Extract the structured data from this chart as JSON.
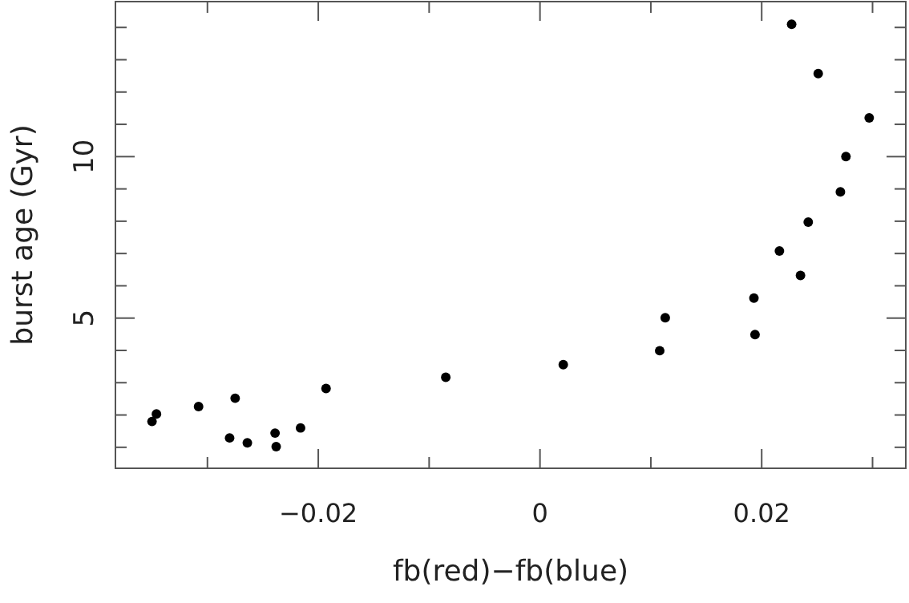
{
  "chart_data": {
    "type": "scatter",
    "xlabel": "fb(red)−fb(blue)",
    "ylabel": "burst age (Gyr)",
    "marker": "circle",
    "xlim": [
      -0.0383,
      0.033
    ],
    "ylim": [
      0.35,
      14.8
    ],
    "xticks": [
      {
        "value": -0.03,
        "label": null
      },
      {
        "value": -0.02,
        "label": "−0.02"
      },
      {
        "value": -0.01,
        "label": null
      },
      0,
      {
        "value": 0.01,
        "label": null
      },
      0.02,
      {
        "value": 0.03,
        "label": null
      }
    ],
    "yticks": [
      {
        "value": 1,
        "label": null
      },
      {
        "value": 2,
        "label": null
      },
      {
        "value": 3,
        "label": null
      },
      {
        "value": 4,
        "label": null
      },
      5,
      {
        "value": 6,
        "label": null
      },
      {
        "value": 7,
        "label": null
      },
      {
        "value": 8,
        "label": null
      },
      {
        "value": 9,
        "label": null
      },
      10,
      {
        "value": 11,
        "label": null
      },
      {
        "value": 12,
        "label": null
      },
      {
        "value": 13,
        "label": null
      },
      {
        "value": 14,
        "label": null
      }
    ],
    "series": [
      {
        "color": "#000000",
        "x": [
          -0.035,
          -0.0346,
          -0.0308,
          -0.0275,
          -0.028,
          -0.0264,
          -0.0239,
          -0.0238,
          -0.0216,
          -0.0193,
          -0.0085,
          0.0021,
          0.0108,
          0.0113,
          0.0193,
          0.0194,
          0.0216,
          0.0235,
          0.0242,
          0.0271,
          0.0276,
          0.0297,
          0.0251,
          0.0227
        ],
        "values": [
          1.8,
          2.03,
          2.26,
          2.52,
          1.29,
          1.14,
          1.44,
          1.02,
          1.6,
          2.82,
          3.17,
          3.56,
          3.99,
          5.01,
          5.62,
          4.49,
          7.08,
          6.32,
          7.97,
          8.91,
          10.0,
          11.2,
          12.57,
          14.1
        ]
      }
    ]
  }
}
